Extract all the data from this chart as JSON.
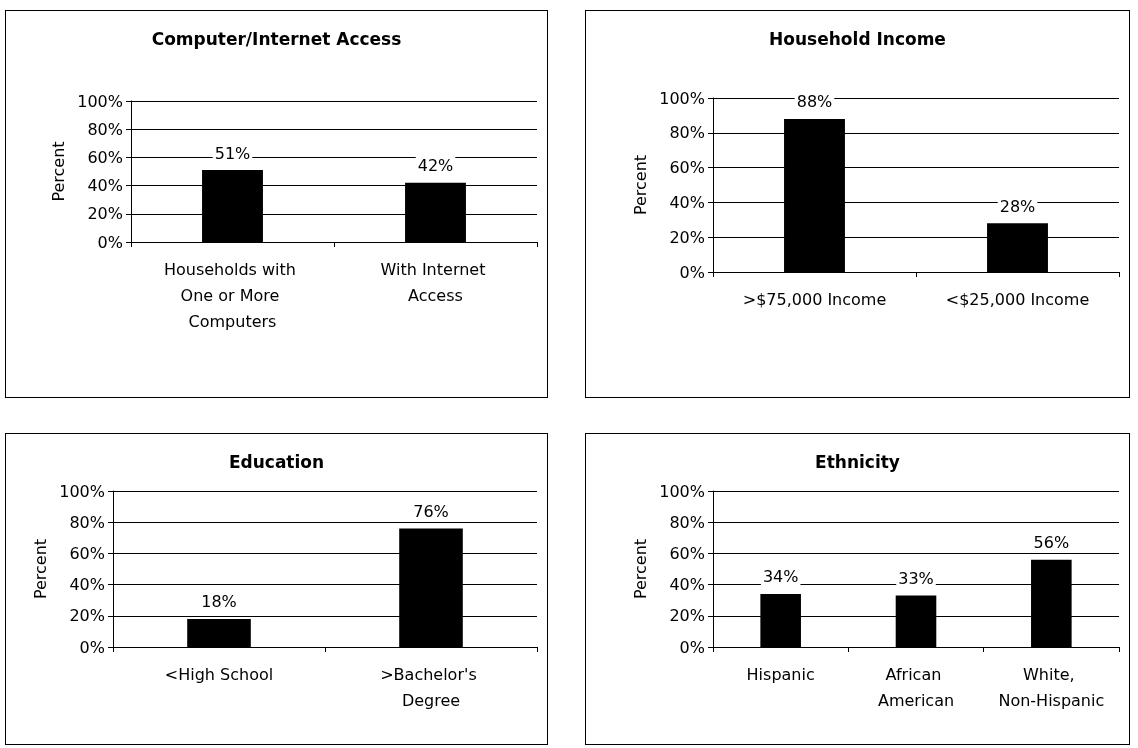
{
  "chart_data": [
    {
      "type": "bar",
      "title": "Computer/Internet Access",
      "ylabel": "Percent",
      "categories": [
        "Households with One or More Computers",
        "With Internet Access"
      ],
      "values": [
        51,
        42
      ],
      "color": "#000000",
      "value_labels": [
        "51%",
        "42%"
      ],
      "ylim": [
        0,
        100
      ],
      "yticks": [
        {
          "value": 0,
          "label": "0%"
        },
        {
          "value": 20,
          "label": "20%"
        },
        {
          "value": 40,
          "label": "40%"
        },
        {
          "value": 60,
          "label": "60%"
        },
        {
          "value": 80,
          "label": "80%"
        },
        {
          "value": 100,
          "label": "100%"
        }
      ],
      "grid": "y"
    },
    {
      "type": "bar",
      "title": "Household Income",
      "ylabel": "Percent",
      "categories": [
        ">$75,000 Income",
        "<$25,000 Income"
      ],
      "values": [
        88,
        28
      ],
      "color": "#000000",
      "value_labels": [
        "88%",
        "28%"
      ],
      "ylim": [
        0,
        100
      ],
      "yticks": [
        {
          "value": 0,
          "label": "0%"
        },
        {
          "value": 20,
          "label": "20%"
        },
        {
          "value": 40,
          "label": "40%"
        },
        {
          "value": 60,
          "label": "60%"
        },
        {
          "value": 80,
          "label": "80%"
        },
        {
          "value": 100,
          "label": "100%"
        }
      ],
      "grid": "y"
    },
    {
      "type": "bar",
      "title": "Education",
      "ylabel": "Percent",
      "categories": [
        "<High School",
        ">Bachelor's Degree"
      ],
      "values": [
        18,
        76
      ],
      "color": "#000000",
      "value_labels": [
        "18%",
        "76%"
      ],
      "ylim": [
        0,
        100
      ],
      "yticks": [
        {
          "value": 0,
          "label": "0%"
        },
        {
          "value": 20,
          "label": "20%"
        },
        {
          "value": 40,
          "label": "40%"
        },
        {
          "value": 60,
          "label": "60%"
        },
        {
          "value": 80,
          "label": "80%"
        },
        {
          "value": 100,
          "label": "100%"
        }
      ],
      "grid": "y"
    },
    {
      "type": "bar",
      "title": "Ethnicity",
      "ylabel": "Percent",
      "categories": [
        "Hispanic",
        "African American",
        "White, Non-Hispanic"
      ],
      "values": [
        34,
        33,
        56
      ],
      "color": "#000000",
      "value_labels": [
        "34%",
        "33%",
        "56%"
      ],
      "ylim": [
        0,
        100
      ],
      "yticks": [
        {
          "value": 0,
          "label": "0%"
        },
        {
          "value": 20,
          "label": "20%"
        },
        {
          "value": 40,
          "label": "40%"
        },
        {
          "value": 60,
          "label": "60%"
        },
        {
          "value": 80,
          "label": "80%"
        },
        {
          "value": 100,
          "label": "100%"
        }
      ],
      "grid": "y"
    }
  ]
}
